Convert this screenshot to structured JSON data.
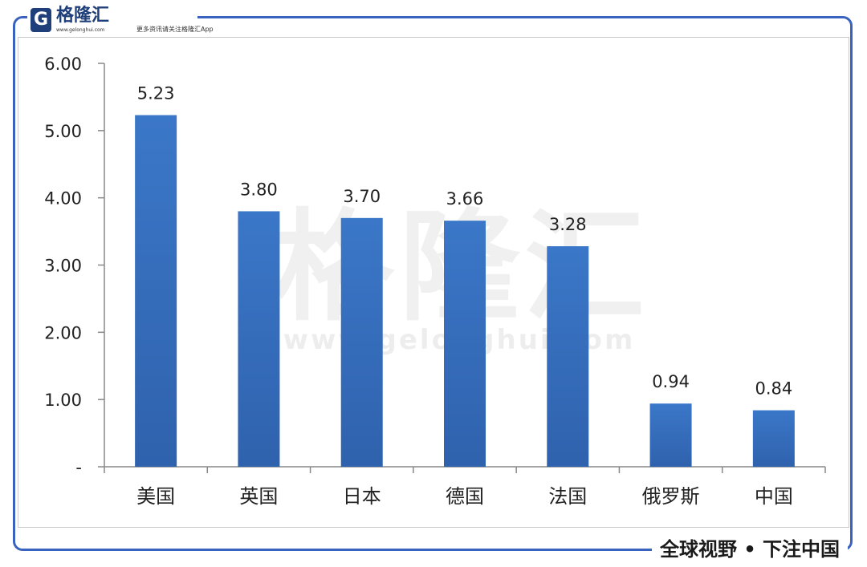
{
  "brand": {
    "logo_letter": "G",
    "name": "格隆汇",
    "site": "www.gelonghui.com",
    "slogan": "更多资讯请关注格隆汇App",
    "logo_icon": "gelonghui-logo-icon"
  },
  "footer": {
    "slogan": "全球视野 • 下注中国"
  },
  "watermark": {
    "main": "格隆汇",
    "url": "www.gelonghui.com"
  },
  "colors": {
    "bar": "#3b77c8",
    "bar_dark": "#2f62ad",
    "frame": "#3a63c0",
    "axis": "#888888"
  },
  "chart_data": {
    "type": "bar",
    "categories": [
      "美国",
      "英国",
      "日本",
      "德国",
      "法国",
      "俄罗斯",
      "中国"
    ],
    "values": [
      5.23,
      3.8,
      3.7,
      3.66,
      3.28,
      0.94,
      0.84
    ],
    "data_labels": [
      "5.23",
      "3.80",
      "3.70",
      "3.66",
      "3.28",
      "0.94",
      "0.84"
    ],
    "y_ticks": [
      0,
      1,
      2,
      3,
      4,
      5,
      6
    ],
    "y_tick_labels": [
      "-",
      "1.00",
      "2.00",
      "3.00",
      "4.00",
      "5.00",
      "6.00"
    ],
    "ylim": [
      0,
      6
    ],
    "title": "",
    "xlabel": "",
    "ylabel": "",
    "grid": false,
    "legend": "none"
  }
}
